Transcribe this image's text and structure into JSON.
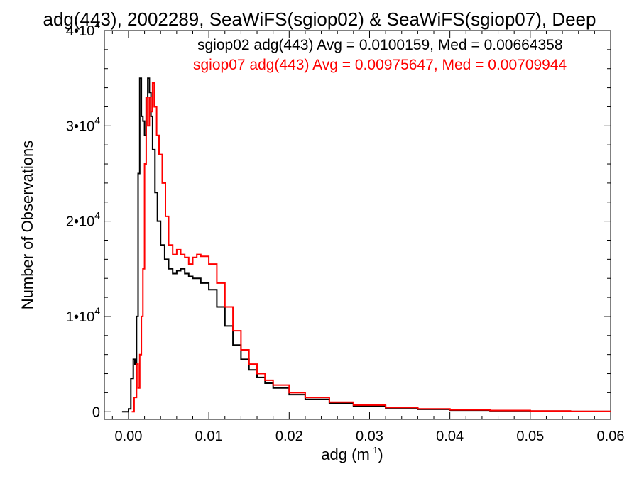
{
  "chart_data": {
    "type": "line",
    "title": "adg(443), 2002289, SeaWiFS(sgiop02) & SeaWiFS(sgiop07), Deep",
    "xlabel": "adg (m",
    "xlabel_sup": "-1",
    "xlabel_close": ")",
    "ylabel": "Number of Observations",
    "xlim": [
      -0.003,
      0.06
    ],
    "ylim": [
      -800,
      40000
    ],
    "grid": false,
    "x_ticks": [
      0.0,
      0.01,
      0.02,
      0.03,
      0.04,
      0.05,
      0.06
    ],
    "x_tick_labels": [
      "0.00",
      "0.01",
      "0.02",
      "0.03",
      "0.04",
      "0.05",
      "0.06"
    ],
    "y_ticks": [
      0,
      10000,
      20000,
      30000,
      40000
    ],
    "y_tick_labels": [
      {
        "base": "0",
        "exp": ""
      },
      {
        "base": "1•10",
        "exp": "4"
      },
      {
        "base": "2•10",
        "exp": "4"
      },
      {
        "base": "3•10",
        "exp": "4"
      },
      {
        "base": "4•10",
        "exp": "4"
      }
    ],
    "annotations": [
      {
        "text": "sgiop02 adg(443) Avg = 0.0100159, Med = 0.00664358",
        "color": "#000000"
      },
      {
        "text": "sgiop07 adg(443) Avg = 0.00975647, Med = 0.00709944",
        "color": "#ff0000"
      }
    ],
    "series": [
      {
        "name": "sgiop02",
        "color": "#000000",
        "x": [
          -0.0008,
          0.0,
          0.0003,
          0.0006,
          0.0008,
          0.001,
          0.0012,
          0.0014,
          0.0016,
          0.0018,
          0.002,
          0.0022,
          0.0024,
          0.0026,
          0.0028,
          0.003,
          0.0033,
          0.0036,
          0.004,
          0.0045,
          0.005,
          0.0055,
          0.006,
          0.0065,
          0.007,
          0.0075,
          0.008,
          0.009,
          0.01,
          0.011,
          0.012,
          0.013,
          0.014,
          0.015,
          0.016,
          0.017,
          0.018,
          0.02,
          0.022,
          0.025,
          0.028,
          0.032,
          0.036,
          0.04,
          0.045,
          0.05,
          0.055,
          0.06
        ],
        "values": [
          0,
          300,
          3500,
          5500,
          5000,
          10000,
          25000,
          35000,
          31000,
          30500,
          29000,
          33000,
          35000,
          33500,
          31000,
          27500,
          23000,
          20000,
          17500,
          16000,
          15000,
          14500,
          14800,
          15000,
          14500,
          14200,
          14000,
          13500,
          12800,
          11000,
          9000,
          7000,
          5500,
          4400,
          3600,
          3000,
          2500,
          1800,
          1300,
          900,
          600,
          400,
          250,
          160,
          100,
          60,
          30,
          15
        ]
      },
      {
        "name": "sgiop07",
        "color": "#ff0000",
        "x": [
          0.0004,
          0.0007,
          0.001,
          0.0012,
          0.0014,
          0.0016,
          0.0018,
          0.002,
          0.0022,
          0.0024,
          0.0026,
          0.0028,
          0.003,
          0.0032,
          0.0035,
          0.0038,
          0.0042,
          0.0046,
          0.005,
          0.0055,
          0.006,
          0.0065,
          0.007,
          0.0075,
          0.008,
          0.0085,
          0.009,
          0.01,
          0.011,
          0.012,
          0.013,
          0.014,
          0.015,
          0.016,
          0.017,
          0.018,
          0.02,
          0.022,
          0.025,
          0.028,
          0.032,
          0.036,
          0.04,
          0.045,
          0.05,
          0.055,
          0.06
        ],
        "values": [
          0,
          1500,
          5000,
          2500,
          6000,
          10000,
          15000,
          26000,
          33000,
          30000,
          33000,
          31500,
          34500,
          32000,
          29000,
          27000,
          24000,
          20500,
          17500,
          16500,
          17000,
          16500,
          16200,
          15500,
          16200,
          16500,
          16300,
          15500,
          13500,
          11000,
          8500,
          6500,
          5000,
          4000,
          3300,
          2800,
          2000,
          1500,
          1000,
          700,
          450,
          300,
          200,
          130,
          80,
          40,
          20
        ]
      }
    ]
  }
}
